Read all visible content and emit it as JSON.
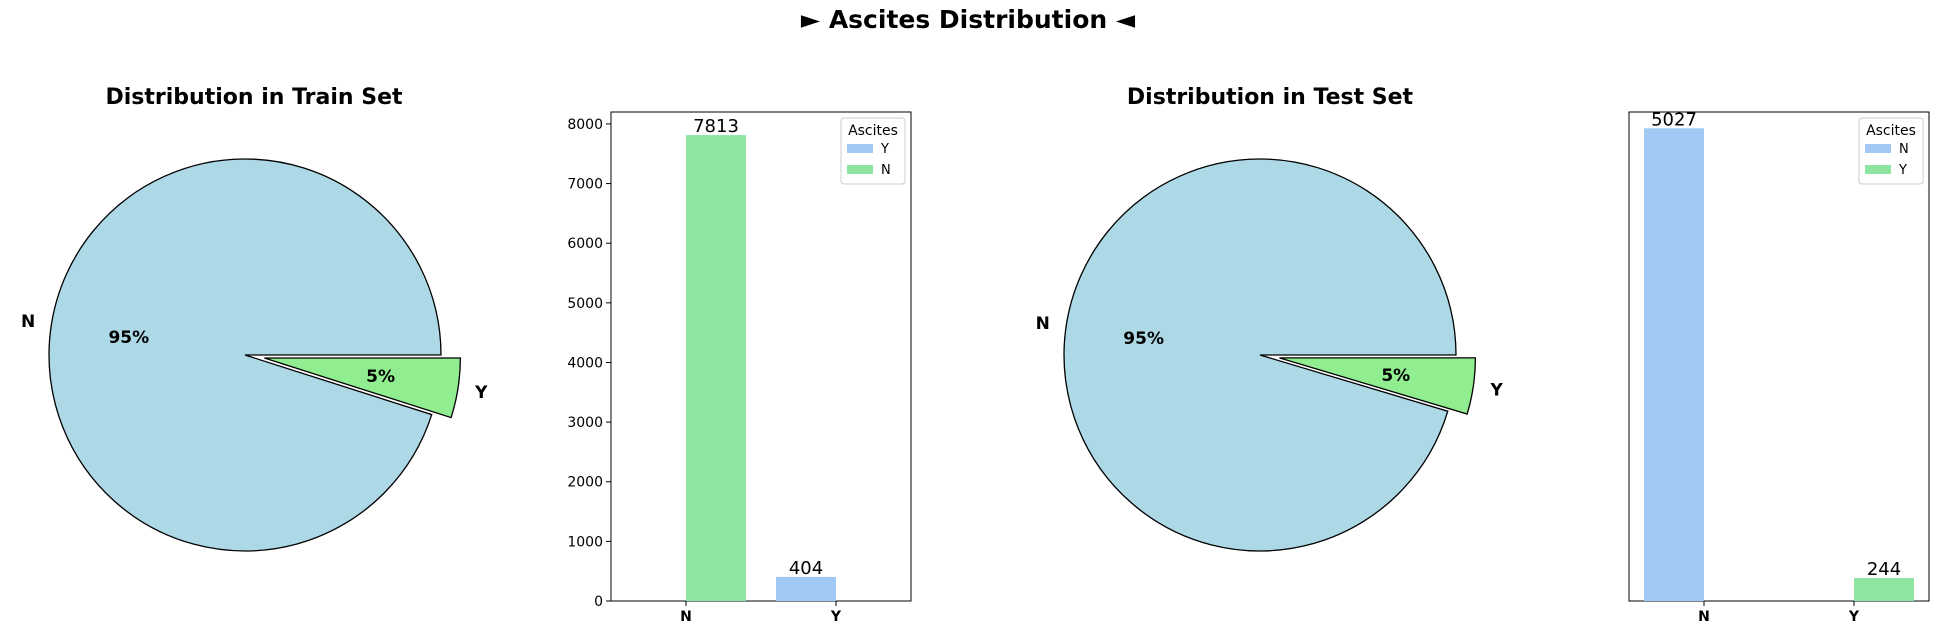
{
  "suptitle": "► Ascites Distribution ◄",
  "colors": {
    "pie_n": "#add8e6",
    "pie_y": "#90ee90",
    "bar_blue": "#a1c9f4",
    "bar_green": "#8de5a1",
    "edge": "#000000"
  },
  "chart_data": [
    {
      "type": "pie",
      "title": "Distribution in Train Set",
      "labels": [
        "N",
        "Y"
      ],
      "values": [
        7813,
        404
      ],
      "pct_labels": [
        "95%",
        "5%"
      ],
      "colors": [
        "#add8e6",
        "#90ee90"
      ],
      "exploded": [
        "Y"
      ]
    },
    {
      "type": "bar",
      "title": "",
      "categories": [
        "N",
        "Y"
      ],
      "series": [
        {
          "name": "Y",
          "values": [
            null,
            404
          ],
          "color": "#a1c9f4"
        },
        {
          "name": "N",
          "values": [
            7813,
            null
          ],
          "color": "#8de5a1"
        }
      ],
      "data_labels": [
        "7813",
        "404"
      ],
      "legend_title": "Ascites",
      "legend_position": "top-right",
      "ylim": [
        0,
        8200
      ],
      "yticks": [
        0,
        1000,
        2000,
        3000,
        4000,
        5000,
        6000,
        7000,
        8000
      ],
      "xlabel": "",
      "ylabel": ""
    },
    {
      "type": "pie",
      "title": "Distribution in Test Set",
      "labels": [
        "N",
        "Y"
      ],
      "values": [
        5027,
        244
      ],
      "pct_labels": [
        "95%",
        "5%"
      ],
      "colors": [
        "#add8e6",
        "#90ee90"
      ],
      "exploded": [
        "Y"
      ]
    },
    {
      "type": "bar",
      "title": "",
      "categories": [
        "N",
        "Y"
      ],
      "series": [
        {
          "name": "N",
          "values": [
            5027,
            null
          ],
          "color": "#a1c9f4"
        },
        {
          "name": "Y",
          "values": [
            null,
            244
          ],
          "color": "#8de5a1"
        }
      ],
      "data_labels": [
        "5027",
        "244"
      ],
      "legend_title": "Ascites",
      "legend_position": "top-right",
      "ylim": [
        0,
        5200
      ],
      "yticks": [],
      "xlabel": "",
      "ylabel": ""
    }
  ]
}
